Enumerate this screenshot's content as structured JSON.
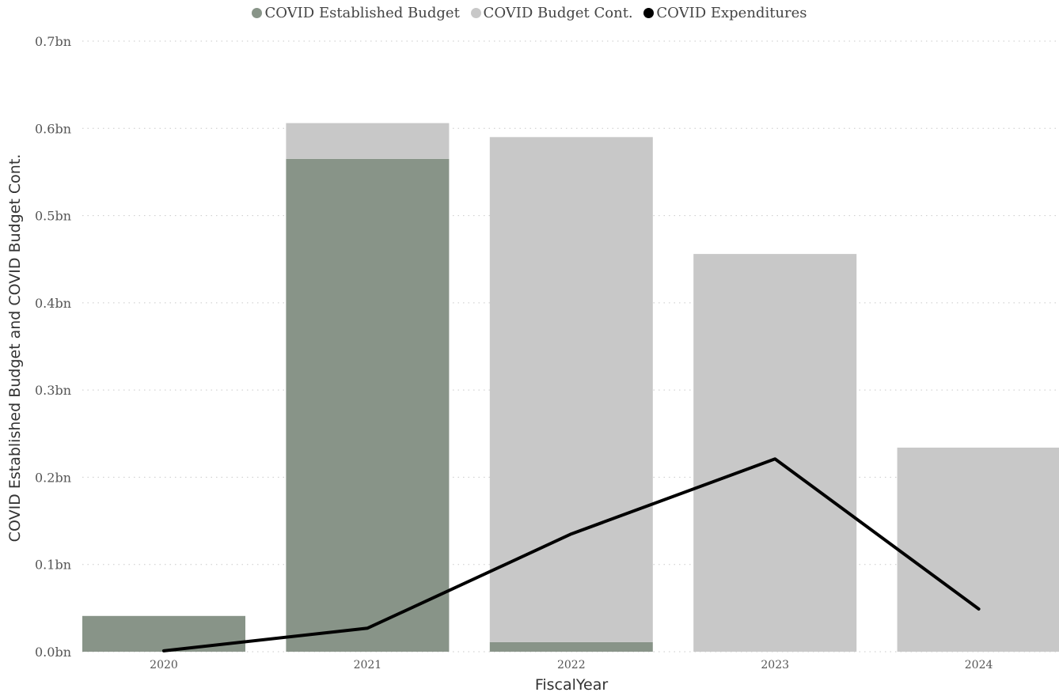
{
  "chart_data": {
    "type": "bar",
    "categories": [
      "2020",
      "2021",
      "2022",
      "2023",
      "2024"
    ],
    "series": [
      {
        "name": "COVID Established Budget",
        "kind": "bar",
        "color": "#889488",
        "values": [
          0.041,
          0.565,
          0.011,
          0.0,
          0.0
        ]
      },
      {
        "name": "COVID Budget Cont.",
        "kind": "bar",
        "color": "#c8c8c8",
        "values": [
          0.0,
          0.041,
          0.579,
          0.456,
          0.234
        ]
      },
      {
        "name": "COVID Expenditures",
        "kind": "line",
        "color": "#000000",
        "values": [
          0.001,
          0.027,
          0.135,
          0.221,
          0.049
        ]
      }
    ],
    "stacked": true,
    "title": "",
    "xlabel": "FiscalYear",
    "ylabel": "COVID Established Budget and COVID Budget Cont.",
    "ylim": [
      0,
      0.7
    ],
    "yticks": [
      "0.0bn",
      "0.1bn",
      "0.2bn",
      "0.3bn",
      "0.4bn",
      "0.5bn",
      "0.6bn",
      "0.7bn"
    ],
    "grid": true,
    "legend_position": "top"
  }
}
